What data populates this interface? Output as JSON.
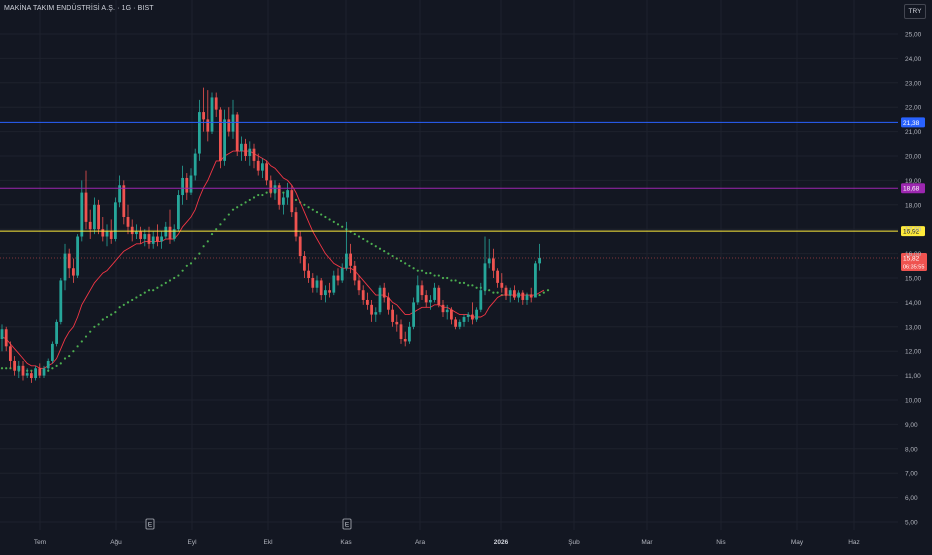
{
  "header": {
    "title": "MAKİNA TAKIM ENDÜSTRİSİ A.Ş. · 1G · BIST",
    "currency": "TRY"
  },
  "colors": {
    "background": "#131722",
    "grid": "#1e222d",
    "up": "#26a69a",
    "down": "#ef5350",
    "ema_fast": "#f23645",
    "ema_slow_dots": "#4caf50",
    "line_blue": "#2962ff",
    "line_purple": "#9c27b0",
    "line_yellow": "#ffeb3b",
    "last_price_line": "#ef5350"
  },
  "chart_data": {
    "type": "candlestick",
    "title": "MAKİNA TAKIM ENDÜSTRİSİ A.Ş. · 1G · BIST",
    "ylim": [
      4.5,
      26
    ],
    "y_ticks": [
      "5,00",
      "6,00",
      "7,00",
      "8,00",
      "9,00",
      "10,00",
      "11,00",
      "12,00",
      "13,00",
      "14,00",
      "15,00",
      "16,00",
      "17,00",
      "18,00",
      "19,00",
      "20,00",
      "21,00",
      "22,00",
      "23,00",
      "24,00",
      "25,00"
    ],
    "x_ticks": [
      "Tem",
      "Ağu",
      "Eyl",
      "Ekl",
      "Kas",
      "Ara",
      "2026",
      "Şub",
      "Mar",
      "Nis",
      "May",
      "Haz"
    ],
    "x_tick_bold": [
      "2026"
    ],
    "earnings_markers": [
      {
        "month": "Ağu",
        "label": "E"
      },
      {
        "month": "Ekl",
        "label": "E"
      }
    ],
    "horizontal_lines": [
      {
        "value": 21.38,
        "label": "21,38",
        "color": "#2962ff"
      },
      {
        "value": 18.68,
        "label": "18,68",
        "color": "#9c27b0"
      },
      {
        "value": 16.92,
        "label": "16,92",
        "color": "#ffeb3b"
      }
    ],
    "last_price": {
      "value": 15.82,
      "label": "15,82",
      "countdown": "06:35:55"
    },
    "ohlc": [
      [
        12.5,
        13.1,
        12.0,
        12.9
      ],
      [
        12.9,
        13.0,
        12.0,
        12.2
      ],
      [
        12.2,
        12.4,
        11.3,
        11.6
      ],
      [
        11.6,
        11.8,
        11.0,
        11.2
      ],
      [
        11.2,
        11.6,
        10.9,
        11.4
      ],
      [
        11.4,
        11.6,
        10.8,
        11.0
      ],
      [
        11.0,
        11.3,
        10.9,
        11.1
      ],
      [
        11.1,
        11.2,
        10.7,
        10.9
      ],
      [
        10.9,
        11.4,
        10.8,
        11.3
      ],
      [
        11.3,
        11.5,
        10.9,
        11.0
      ],
      [
        11.0,
        11.4,
        10.9,
        11.3
      ],
      [
        11.3,
        11.7,
        11.2,
        11.6
      ],
      [
        11.6,
        12.4,
        11.5,
        12.3
      ],
      [
        12.3,
        13.3,
        12.2,
        13.2
      ],
      [
        13.2,
        15.0,
        13.1,
        14.9
      ],
      [
        14.9,
        16.4,
        14.5,
        16.0
      ],
      [
        16.0,
        16.2,
        15.0,
        15.4
      ],
      [
        15.4,
        15.8,
        14.8,
        15.1
      ],
      [
        15.1,
        16.8,
        15.0,
        16.7
      ],
      [
        16.7,
        19.0,
        16.5,
        18.5
      ],
      [
        18.5,
        19.4,
        17.0,
        17.3
      ],
      [
        17.3,
        17.8,
        16.6,
        17.0
      ],
      [
        17.0,
        18.3,
        16.8,
        18.0
      ],
      [
        18.0,
        18.2,
        16.8,
        17.0
      ],
      [
        17.0,
        17.5,
        16.5,
        16.7
      ],
      [
        16.7,
        17.2,
        16.3,
        16.9
      ],
      [
        16.9,
        17.4,
        16.4,
        16.6
      ],
      [
        16.6,
        18.3,
        16.5,
        18.1
      ],
      [
        18.1,
        19.2,
        17.9,
        18.8
      ],
      [
        18.8,
        19.0,
        17.2,
        17.5
      ],
      [
        17.5,
        18.0,
        16.8,
        17.1
      ],
      [
        17.1,
        17.4,
        16.5,
        16.8
      ],
      [
        16.8,
        17.2,
        16.6,
        16.9
      ],
      [
        16.9,
        17.1,
        16.4,
        16.6
      ],
      [
        16.6,
        17.0,
        16.3,
        16.8
      ],
      [
        16.8,
        17.1,
        16.2,
        16.4
      ],
      [
        16.4,
        16.9,
        16.2,
        16.7
      ],
      [
        16.7,
        17.2,
        16.3,
        16.5
      ],
      [
        16.5,
        16.9,
        16.2,
        16.7
      ],
      [
        16.7,
        17.3,
        16.6,
        17.1
      ],
      [
        17.1,
        17.8,
        16.4,
        16.6
      ],
      [
        16.6,
        17.2,
        16.5,
        17.0
      ],
      [
        17.0,
        18.6,
        16.9,
        18.4
      ],
      [
        18.4,
        19.6,
        18.0,
        19.1
      ],
      [
        19.1,
        19.3,
        18.2,
        18.5
      ],
      [
        18.5,
        19.5,
        18.4,
        19.2
      ],
      [
        19.2,
        20.3,
        19.0,
        20.1
      ],
      [
        20.1,
        22.3,
        19.8,
        21.8
      ],
      [
        21.8,
        22.8,
        21.0,
        21.5
      ],
      [
        21.5,
        22.7,
        20.6,
        21.0
      ],
      [
        21.0,
        22.6,
        20.9,
        22.4
      ],
      [
        22.4,
        22.6,
        21.6,
        21.9
      ],
      [
        21.9,
        22.0,
        19.5,
        19.8
      ],
      [
        19.8,
        21.9,
        19.6,
        21.5
      ],
      [
        21.5,
        22.0,
        20.8,
        21.0
      ],
      [
        21.0,
        22.3,
        20.7,
        21.7
      ],
      [
        21.7,
        21.8,
        20.0,
        20.2
      ],
      [
        20.2,
        20.8,
        19.8,
        20.5
      ],
      [
        20.5,
        20.7,
        19.8,
        20.0
      ],
      [
        20.0,
        20.6,
        19.6,
        20.3
      ],
      [
        20.3,
        20.5,
        19.5,
        19.8
      ],
      [
        19.8,
        20.1,
        19.2,
        19.4
      ],
      [
        19.4,
        19.9,
        19.1,
        19.7
      ],
      [
        19.7,
        19.8,
        18.8,
        19.0
      ],
      [
        19.0,
        19.2,
        18.3,
        18.5
      ],
      [
        18.5,
        19.0,
        18.2,
        18.8
      ],
      [
        18.8,
        18.9,
        17.8,
        18.0
      ],
      [
        18.0,
        18.5,
        17.6,
        18.3
      ],
      [
        18.3,
        18.9,
        18.0,
        18.6
      ],
      [
        18.6,
        18.8,
        17.5,
        17.7
      ],
      [
        17.7,
        17.9,
        16.5,
        16.7
      ],
      [
        16.7,
        16.9,
        15.6,
        15.9
      ],
      [
        15.9,
        16.1,
        15.0,
        15.3
      ],
      [
        15.3,
        15.6,
        14.8,
        15.0
      ],
      [
        15.0,
        15.2,
        14.4,
        14.6
      ],
      [
        14.6,
        15.1,
        14.4,
        14.9
      ],
      [
        14.9,
        15.0,
        14.1,
        14.3
      ],
      [
        14.3,
        14.7,
        14.0,
        14.5
      ],
      [
        14.5,
        14.8,
        14.2,
        14.4
      ],
      [
        14.4,
        15.3,
        14.3,
        15.1
      ],
      [
        15.1,
        15.4,
        14.7,
        14.9
      ],
      [
        14.9,
        15.6,
        14.8,
        15.4
      ],
      [
        15.4,
        17.3,
        15.3,
        16.0
      ],
      [
        16.0,
        16.4,
        15.2,
        15.5
      ],
      [
        15.5,
        15.7,
        14.7,
        14.9
      ],
      [
        14.9,
        15.1,
        14.3,
        14.5
      ],
      [
        14.5,
        14.7,
        13.9,
        14.1
      ],
      [
        14.1,
        14.4,
        13.7,
        13.9
      ],
      [
        13.9,
        14.1,
        13.2,
        13.5
      ],
      [
        13.5,
        13.8,
        13.2,
        13.6
      ],
      [
        13.6,
        14.7,
        13.5,
        14.6
      ],
      [
        14.6,
        14.8,
        14.0,
        14.2
      ],
      [
        14.2,
        14.4,
        13.5,
        13.7
      ],
      [
        13.7,
        13.9,
        13.0,
        13.2
      ],
      [
        13.2,
        13.5,
        12.8,
        13.1
      ],
      [
        13.1,
        13.3,
        12.3,
        12.5
      ],
      [
        12.5,
        12.8,
        12.2,
        12.4
      ],
      [
        12.4,
        13.2,
        12.3,
        13.0
      ],
      [
        13.0,
        14.2,
        12.9,
        14.0
      ],
      [
        14.0,
        15.1,
        13.9,
        14.7
      ],
      [
        14.7,
        14.9,
        14.1,
        14.3
      ],
      [
        14.3,
        14.5,
        13.8,
        14.0
      ],
      [
        14.0,
        14.3,
        13.7,
        14.1
      ],
      [
        14.1,
        14.8,
        14.0,
        14.6
      ],
      [
        14.6,
        14.7,
        13.8,
        13.9
      ],
      [
        13.9,
        14.1,
        13.4,
        13.6
      ],
      [
        13.6,
        13.9,
        13.3,
        13.7
      ],
      [
        13.7,
        13.8,
        13.1,
        13.3
      ],
      [
        13.3,
        13.4,
        12.9,
        13.0
      ],
      [
        13.0,
        13.3,
        12.9,
        13.2
      ],
      [
        13.2,
        13.5,
        13.0,
        13.4
      ],
      [
        13.4,
        13.6,
        13.2,
        13.5
      ],
      [
        13.5,
        14.0,
        13.1,
        13.3
      ],
      [
        13.3,
        13.8,
        13.2,
        13.7
      ],
      [
        13.7,
        14.8,
        13.6,
        14.5
      ],
      [
        14.5,
        16.7,
        14.3,
        15.6
      ],
      [
        15.6,
        16.6,
        15.4,
        15.8
      ],
      [
        15.8,
        16.2,
        15.0,
        15.3
      ],
      [
        15.3,
        15.4,
        14.6,
        14.8
      ],
      [
        14.8,
        15.2,
        14.4,
        14.6
      ],
      [
        14.6,
        14.7,
        14.1,
        14.3
      ],
      [
        14.3,
        14.6,
        14.0,
        14.5
      ],
      [
        14.5,
        14.7,
        14.1,
        14.2
      ],
      [
        14.2,
        14.5,
        14.0,
        14.4
      ],
      [
        14.4,
        14.5,
        13.9,
        14.1
      ],
      [
        14.1,
        14.4,
        13.9,
        14.3
      ],
      [
        14.3,
        14.6,
        14.0,
        14.2
      ],
      [
        14.2,
        15.7,
        14.2,
        15.6
      ],
      [
        15.6,
        16.4,
        15.3,
        15.82
      ]
    ],
    "ema_fast": [
      12.6,
      12.5,
      12.3,
      12.1,
      11.9,
      11.7,
      11.5,
      11.4,
      11.4,
      11.3,
      11.3,
      11.4,
      11.5,
      11.7,
      12.1,
      12.5,
      12.8,
      13.0,
      13.4,
      13.9,
      14.2,
      14.5,
      14.8,
      15.0,
      15.2,
      15.3,
      15.5,
      15.7,
      15.9,
      16.1,
      16.2,
      16.3,
      16.4,
      16.4,
      16.5,
      16.5,
      16.5,
      16.5,
      16.5,
      16.6,
      16.6,
      16.6,
      16.8,
      17.1,
      17.3,
      17.5,
      17.8,
      18.3,
      18.7,
      19.0,
      19.4,
      19.8,
      19.8,
      20.0,
      20.1,
      20.2,
      20.2,
      20.2,
      20.2,
      20.2,
      20.1,
      20.0,
      19.9,
      19.8,
      19.6,
      19.5,
      19.3,
      19.1,
      19.0,
      18.8,
      18.5,
      18.1,
      17.7,
      17.3,
      16.9,
      16.6,
      16.3,
      16.0,
      15.8,
      15.6,
      15.5,
      15.4,
      15.4,
      15.4,
      15.3,
      15.1,
      14.9,
      14.7,
      14.5,
      14.3,
      14.3,
      14.3,
      14.2,
      14.0,
      13.9,
      13.7,
      13.5,
      13.5,
      13.6,
      13.7,
      13.8,
      13.8,
      13.8,
      13.9,
      13.9,
      13.8,
      13.8,
      13.7,
      13.6,
      13.5,
      13.5,
      13.5,
      13.4,
      13.4,
      13.4,
      13.5,
      13.8,
      14.0,
      14.2,
      14.3,
      14.3,
      14.3,
      14.3,
      14.3,
      14.3,
      14.3,
      14.3,
      14.3,
      14.4,
      14.5
    ],
    "ema_slow": [
      11.3,
      11.3,
      11.3,
      11.3,
      11.2,
      11.2,
      11.2,
      11.2,
      11.2,
      11.2,
      11.2,
      11.2,
      11.3,
      11.4,
      11.5,
      11.7,
      11.8,
      12.0,
      12.2,
      12.4,
      12.6,
      12.8,
      13.0,
      13.1,
      13.3,
      13.4,
      13.5,
      13.6,
      13.8,
      13.9,
      14.0,
      14.1,
      14.2,
      14.3,
      14.4,
      14.5,
      14.5,
      14.6,
      14.7,
      14.8,
      14.9,
      15.0,
      15.1,
      15.3,
      15.5,
      15.6,
      15.8,
      16.0,
      16.3,
      16.5,
      16.8,
      17.0,
      17.2,
      17.4,
      17.6,
      17.8,
      17.9,
      18.0,
      18.1,
      18.2,
      18.3,
      18.4,
      18.4,
      18.5,
      18.5,
      18.5,
      18.5,
      18.5,
      18.4,
      18.3,
      18.2,
      18.1,
      18.0,
      17.9,
      17.8,
      17.7,
      17.6,
      17.5,
      17.4,
      17.3,
      17.2,
      17.1,
      17.0,
      16.9,
      16.8,
      16.7,
      16.6,
      16.5,
      16.4,
      16.3,
      16.2,
      16.1,
      16.0,
      15.9,
      15.8,
      15.7,
      15.6,
      15.5,
      15.4,
      15.3,
      15.3,
      15.2,
      15.2,
      15.1,
      15.1,
      15.0,
      15.0,
      14.9,
      14.9,
      14.8,
      14.8,
      14.7,
      14.7,
      14.6,
      14.6,
      14.5,
      14.5,
      14.4,
      14.4,
      14.3,
      14.3,
      14.3,
      14.3,
      14.3,
      14.3,
      14.3,
      14.3,
      14.3,
      14.3,
      14.4,
      14.5
    ]
  }
}
